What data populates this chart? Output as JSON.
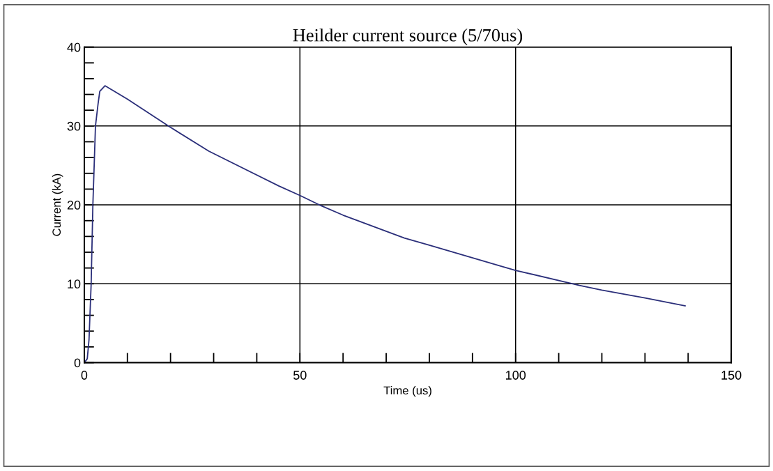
{
  "chart_data": {
    "type": "line",
    "title": "Heilder current source (5/70us)",
    "xlabel": "Time (us)",
    "ylabel": "Current (kA)",
    "xlim": [
      0,
      150
    ],
    "ylim": [
      0,
      40
    ],
    "xticks": [
      0,
      {
        "value": 10,
        "label": null
      },
      {
        "value": 20,
        "label": null
      },
      {
        "value": 30,
        "label": null
      },
      {
        "value": 40,
        "label": null
      },
      50,
      {
        "value": 60,
        "label": null
      },
      {
        "value": 70,
        "label": null
      },
      {
        "value": 80,
        "label": null
      },
      {
        "value": 90,
        "label": null
      },
      100,
      {
        "value": 110,
        "label": null
      },
      {
        "value": 120,
        "label": null
      },
      {
        "value": 130,
        "label": null
      },
      {
        "value": 140,
        "label": null
      },
      150
    ],
    "yticks": [
      0,
      {
        "value": 2,
        "label": null
      },
      {
        "value": 4,
        "label": null
      },
      {
        "value": 6,
        "label": null
      },
      {
        "value": 8,
        "label": null
      },
      10,
      {
        "value": 12,
        "label": null
      },
      {
        "value": 14,
        "label": null
      },
      {
        "value": 16,
        "label": null
      },
      {
        "value": 18,
        "label": null
      },
      20,
      {
        "value": 22,
        "label": null
      },
      {
        "value": 24,
        "label": null
      },
      {
        "value": 26,
        "label": null
      },
      {
        "value": 28,
        "label": null
      },
      30,
      {
        "value": 32,
        "label": null
      },
      {
        "value": 34,
        "label": null
      },
      {
        "value": 36,
        "label": null
      },
      {
        "value": 38,
        "label": null
      },
      40
    ],
    "grid": true,
    "marker": "none",
    "line_style": "solid",
    "series": [
      {
        "color": "#2b2f7a",
        "x": [
          0,
          0.7,
          1.1,
          1.6,
          2.0,
          2.6,
          3.2,
          3.6,
          4.8,
          10,
          19.5,
          28.9,
          45.1,
          50,
          54.5,
          60,
          74.2,
          80,
          96.8,
          100,
          114.8,
          120,
          130,
          139.3
        ],
        "values": [
          0,
          0.5,
          2.9,
          10,
          20,
          30,
          32.8,
          34.4,
          35.1,
          33.4,
          30,
          26.8,
          22.4,
          21.2,
          20,
          18.7,
          15.8,
          14.9,
          12.2,
          11.7,
          9.8,
          9.2,
          8.2,
          7.2
        ]
      }
    ]
  }
}
